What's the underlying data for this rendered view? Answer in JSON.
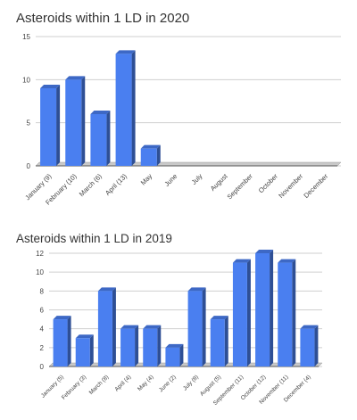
{
  "chart_data": [
    {
      "type": "bar",
      "title": "Asteroids within 1 LD in 2020",
      "categories": [
        "January (9)",
        "February (10)",
        "March (6)",
        "April (13)",
        "May",
        "June",
        "July",
        "August",
        "September",
        "October",
        "November",
        "December"
      ],
      "values": [
        9,
        10,
        6,
        13,
        2,
        null,
        null,
        null,
        null,
        null,
        null,
        null
      ],
      "yticks": [
        0,
        5,
        10,
        15
      ],
      "ylim": [
        0,
        15
      ],
      "grid": true,
      "color": "#4a7ff0"
    },
    {
      "type": "bar",
      "title": "Asteroids within 1 LD in 2019",
      "categories": [
        "January (5)",
        "February (3)",
        "March (8)",
        "April (4)",
        "May (4)",
        "June (2)",
        "July (8)",
        "August (5)",
        "September (11)",
        "October (12)",
        "November (11)",
        "December (4)"
      ],
      "values": [
        5,
        3,
        8,
        4,
        4,
        2,
        8,
        5,
        11,
        12,
        11,
        4
      ],
      "yticks": [
        0,
        2,
        4,
        6,
        8,
        10,
        12
      ],
      "ylim": [
        0,
        12
      ],
      "grid": true,
      "color": "#4a7ff0"
    }
  ]
}
